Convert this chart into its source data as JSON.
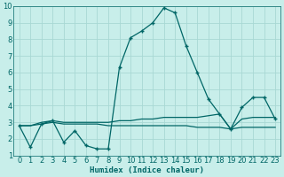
{
  "xlabel": "Humidex (Indice chaleur)",
  "xlim": [
    -0.5,
    23.5
  ],
  "ylim": [
    1,
    10
  ],
  "yticks": [
    1,
    2,
    3,
    4,
    5,
    6,
    7,
    8,
    9,
    10
  ],
  "xticks": [
    0,
    1,
    2,
    3,
    4,
    5,
    6,
    7,
    8,
    9,
    10,
    11,
    12,
    13,
    14,
    15,
    16,
    17,
    18,
    19,
    20,
    21,
    22,
    23
  ],
  "bg_color": "#c8eeea",
  "line_color": "#006666",
  "grid_color": "#a8d8d4",
  "line1_x": [
    0,
    1,
    2,
    3,
    4,
    5,
    6,
    7,
    8,
    9,
    10,
    11,
    12,
    13,
    14,
    15,
    16,
    17,
    18,
    19,
    20,
    21,
    22,
    23
  ],
  "line1_y": [
    2.8,
    1.5,
    2.9,
    3.1,
    1.8,
    2.5,
    1.6,
    1.4,
    1.4,
    6.3,
    8.1,
    8.5,
    9.0,
    9.9,
    9.6,
    7.6,
    6.0,
    4.4,
    3.5,
    2.6,
    3.9,
    4.5,
    4.5,
    3.2
  ],
  "line2_x": [
    0,
    1,
    2,
    3,
    4,
    5,
    6,
    7,
    8,
    9,
    10,
    11,
    12,
    13,
    14,
    15,
    16,
    17,
    18,
    19,
    20,
    21,
    22,
    23
  ],
  "line2_y": [
    2.8,
    2.8,
    3.0,
    3.1,
    3.0,
    3.0,
    3.0,
    3.0,
    3.0,
    3.1,
    3.1,
    3.2,
    3.2,
    3.3,
    3.3,
    3.3,
    3.3,
    3.4,
    3.5,
    2.6,
    3.2,
    3.3,
    3.3,
    3.3
  ],
  "line3_x": [
    0,
    1,
    2,
    3,
    4,
    5,
    6,
    7,
    8,
    9,
    10,
    11,
    12,
    13,
    14,
    15,
    16,
    17,
    18,
    19,
    20,
    21,
    22,
    23
  ],
  "line3_y": [
    2.8,
    2.8,
    2.9,
    3.0,
    2.9,
    2.9,
    2.9,
    2.9,
    2.8,
    2.8,
    2.8,
    2.8,
    2.8,
    2.8,
    2.8,
    2.8,
    2.7,
    2.7,
    2.7,
    2.6,
    2.7,
    2.7,
    2.7,
    2.7
  ],
  "tick_fontsize": 6.0,
  "xlabel_fontsize": 6.5
}
